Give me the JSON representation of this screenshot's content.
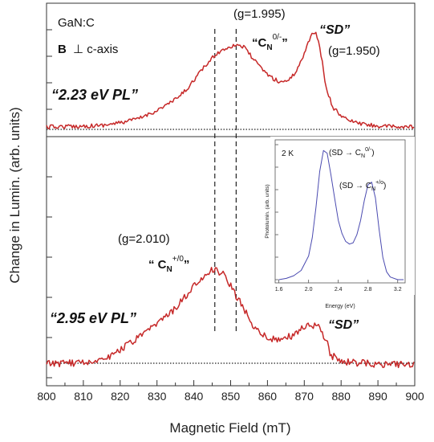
{
  "chart_data": {
    "type": "line",
    "xlabel": "Magnetic  Field (mT)",
    "ylabel": "Change in  Lumin. (arb. units)",
    "xlim": [
      800,
      900
    ],
    "xticks": [
      "800",
      "810",
      "820",
      "830",
      "840",
      "850",
      "860",
      "870",
      "880",
      "890",
      "900"
    ],
    "grid": false,
    "vertical_dashed_lines_x": [
      845.7,
      851.5
    ],
    "series": [
      {
        "name": "2.23 eV PL",
        "x": [
          800,
          810,
          815,
          820,
          825,
          830,
          835,
          838,
          842,
          846,
          849,
          852,
          854,
          856,
          858,
          861,
          863,
          865,
          867,
          869,
          870.5,
          872,
          873,
          874,
          875,
          876,
          878,
          881,
          885,
          890,
          895,
          900
        ],
        "y": [
          0.0,
          0.01,
          0.02,
          0.05,
          0.1,
          0.2,
          0.33,
          0.45,
          0.68,
          0.88,
          0.96,
          1.0,
          0.95,
          0.83,
          0.72,
          0.6,
          0.55,
          0.55,
          0.62,
          0.78,
          0.95,
          1.13,
          1.15,
          1.0,
          0.75,
          0.45,
          0.22,
          0.1,
          0.04,
          0.01,
          0.0,
          0.0
        ]
      },
      {
        "name": "2.95 eV PL",
        "x": [
          800,
          805,
          810,
          815,
          818,
          822,
          826,
          830,
          834,
          838,
          841,
          844,
          846,
          848,
          850,
          853,
          856,
          860,
          864,
          868,
          870,
          872,
          874,
          876,
          877,
          880,
          885,
          890,
          895,
          900
        ],
        "y": [
          0.0,
          0.01,
          0.02,
          0.05,
          0.1,
          0.2,
          0.3,
          0.42,
          0.55,
          0.72,
          0.86,
          0.97,
          1.0,
          0.94,
          0.82,
          0.62,
          0.42,
          0.27,
          0.25,
          0.33,
          0.4,
          0.42,
          0.38,
          0.26,
          0.1,
          0.03,
          0.01,
          0.0,
          0.0,
          0.0
        ]
      }
    ],
    "annotations": {
      "sample": "GaN:C",
      "orientation_b": "B",
      "orientation_rest": "⊥ c-axis",
      "g1": "(g=1.995)",
      "cn0_main": "“C",
      "cn0_sub": "N",
      "cn0_sup": "0/-",
      "cn0_close": "”",
      "sd_top": "“SD”",
      "g_sd": "(g=1.950)",
      "pl_top": "“2.23 eV  PL”",
      "g2": "(g=2.010)",
      "cnp_main": "“ C",
      "cnp_sub": "N",
      "cnp_sup": "+/0",
      "cnp_close": "”",
      "pl_bottom": "“2.95 eV  PL”",
      "sd_bottom": "“SD”"
    },
    "inset": {
      "type": "line",
      "xlabel": "Energy (eV)",
      "ylabel": "Photolumin. (arb. units)",
      "xlim": [
        1.55,
        3.3
      ],
      "xticks": [
        "1.6",
        "2.0",
        "2.4",
        "2.8",
        "3.2"
      ],
      "label_temp": "2 K",
      "label_peak1_pre": "(SD → C",
      "label_peak1_sub": "N",
      "label_peak1_sup": "0/-",
      "label_peak1_post": ")",
      "label_peak2_pre": "(SD → C",
      "label_peak2_sub": "N",
      "label_peak2_sup": "+/o",
      "label_peak2_post": ")",
      "x": [
        1.6,
        1.7,
        1.8,
        1.9,
        2.0,
        2.05,
        2.1,
        2.15,
        2.2,
        2.25,
        2.3,
        2.35,
        2.4,
        2.45,
        2.5,
        2.55,
        2.6,
        2.65,
        2.7,
        2.75,
        2.8,
        2.85,
        2.9,
        2.95,
        3.0,
        3.05,
        3.1,
        3.2,
        3.28
      ],
      "y": [
        0.0,
        0.01,
        0.03,
        0.07,
        0.18,
        0.32,
        0.55,
        0.82,
        0.98,
        0.96,
        0.8,
        0.62,
        0.45,
        0.35,
        0.29,
        0.27,
        0.28,
        0.34,
        0.45,
        0.6,
        0.72,
        0.74,
        0.62,
        0.38,
        0.17,
        0.06,
        0.02,
        0.0,
        0.0
      ]
    }
  }
}
